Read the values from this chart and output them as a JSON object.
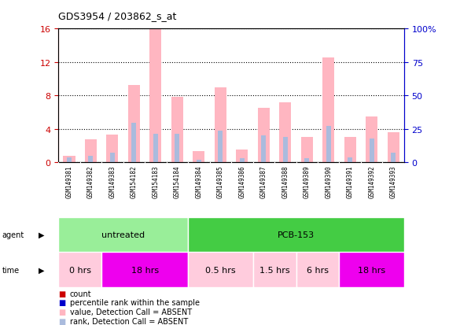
{
  "title": "GDS3954 / 203862_s_at",
  "samples": [
    "GSM149381",
    "GSM149382",
    "GSM149383",
    "GSM154182",
    "GSM154183",
    "GSM154184",
    "GSM149384",
    "GSM149385",
    "GSM149386",
    "GSM149387",
    "GSM149388",
    "GSM149389",
    "GSM149390",
    "GSM149391",
    "GSM149392",
    "GSM149393"
  ],
  "value_bars": [
    0.8,
    2.7,
    3.3,
    9.2,
    16.0,
    7.8,
    1.3,
    9.0,
    1.5,
    6.5,
    7.2,
    3.0,
    12.5,
    3.0,
    5.5,
    3.6
  ],
  "rank_bars": [
    0.6,
    0.8,
    1.1,
    4.7,
    3.4,
    3.4,
    0.3,
    3.8,
    0.5,
    3.2,
    3.0,
    0.5,
    4.3,
    0.6,
    2.8,
    1.1
  ],
  "ylim_left": [
    0,
    16
  ],
  "ylim_right": [
    0,
    100
  ],
  "yticks_left": [
    0,
    4,
    8,
    12,
    16
  ],
  "yticks_right": [
    0,
    25,
    50,
    75,
    100
  ],
  "value_color": "#FFB6C1",
  "rank_color": "#AABBDD",
  "agent_groups": [
    {
      "label": "untreated",
      "start": 0,
      "end": 6,
      "color": "#99EE99"
    },
    {
      "label": "PCB-153",
      "start": 6,
      "end": 16,
      "color": "#44CC44"
    }
  ],
  "time_groups": [
    {
      "label": "0 hrs",
      "start": 0,
      "end": 2,
      "color": "#FFCCDD"
    },
    {
      "label": "18 hrs",
      "start": 2,
      "end": 6,
      "color": "#EE00EE"
    },
    {
      "label": "0.5 hrs",
      "start": 6,
      "end": 9,
      "color": "#FFCCDD"
    },
    {
      "label": "1.5 hrs",
      "start": 9,
      "end": 11,
      "color": "#FFCCDD"
    },
    {
      "label": "6 hrs",
      "start": 11,
      "end": 13,
      "color": "#FFCCDD"
    },
    {
      "label": "18 hrs",
      "start": 13,
      "end": 16,
      "color": "#EE00EE"
    }
  ],
  "legend_items": [
    {
      "label": "count",
      "color": "#CC0000"
    },
    {
      "label": "percentile rank within the sample",
      "color": "#0000CC"
    },
    {
      "label": "value, Detection Call = ABSENT",
      "color": "#FFB6C1"
    },
    {
      "label": "rank, Detection Call = ABSENT",
      "color": "#AABBDD"
    }
  ],
  "left_axis_color": "#CC0000",
  "right_axis_color": "#0000CC",
  "bar_width": 0.55,
  "rank_bar_width": 0.22
}
